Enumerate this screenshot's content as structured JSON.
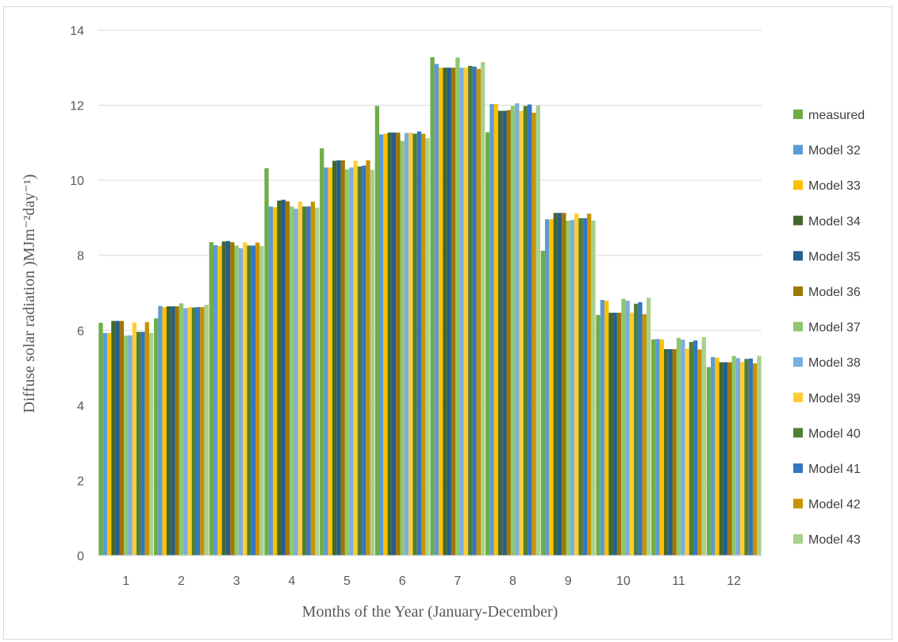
{
  "chart_data": {
    "type": "bar",
    "xlabel": "Months of the Year (January-December)",
    "ylabel": "Diffuse solar radiation )MJm⁻²day⁻¹)",
    "ylim": [
      0,
      14
    ],
    "yticks": [
      0,
      2,
      4,
      6,
      8,
      10,
      12,
      14
    ],
    "grid": true,
    "legend_position": "right",
    "categories": [
      "1",
      "2",
      "3",
      "4",
      "5",
      "6",
      "7",
      "8",
      "9",
      "10",
      "11",
      "12"
    ],
    "series": [
      {
        "name": "measured",
        "color": "#70ad47",
        "values": [
          6.2,
          6.32,
          8.35,
          10.32,
          10.85,
          11.98,
          13.28,
          11.28,
          8.12,
          6.41,
          5.76,
          5.02
        ]
      },
      {
        "name": "Model 32",
        "color": "#5b9bd5",
        "values": [
          5.93,
          6.65,
          8.27,
          9.3,
          10.34,
          11.22,
          13.1,
          12.03,
          8.96,
          6.81,
          5.77,
          5.29
        ]
      },
      {
        "name": "Model 33",
        "color": "#ffc000",
        "values": [
          5.93,
          6.62,
          8.25,
          9.28,
          10.34,
          11.24,
          13.0,
          12.03,
          8.96,
          6.79,
          5.76,
          5.27
        ]
      },
      {
        "name": "Model 34",
        "color": "#43682b",
        "values": [
          6.25,
          6.64,
          8.37,
          9.46,
          10.52,
          11.27,
          13.0,
          11.85,
          9.13,
          6.47,
          5.5,
          5.15
        ]
      },
      {
        "name": "Model 35",
        "color": "#255e91",
        "values": [
          6.25,
          6.64,
          8.38,
          9.48,
          10.53,
          11.27,
          13.0,
          11.85,
          9.13,
          6.47,
          5.5,
          5.15
        ]
      },
      {
        "name": "Model 36",
        "color": "#9e7800",
        "values": [
          6.25,
          6.64,
          8.35,
          9.44,
          10.53,
          11.27,
          13.0,
          11.87,
          9.13,
          6.47,
          5.5,
          5.15
        ]
      },
      {
        "name": "Model 37",
        "color": "#8fc76d",
        "values": [
          5.86,
          6.72,
          8.26,
          9.3,
          10.29,
          11.05,
          13.27,
          11.98,
          8.92,
          6.84,
          5.8,
          5.32
        ]
      },
      {
        "name": "Model 38",
        "color": "#7aaee0",
        "values": [
          5.87,
          6.59,
          8.19,
          9.24,
          10.34,
          11.26,
          13.0,
          12.05,
          8.94,
          6.79,
          5.75,
          5.26
        ]
      },
      {
        "name": "Model 39",
        "color": "#ffcd33",
        "values": [
          6.21,
          6.62,
          8.34,
          9.43,
          10.52,
          11.27,
          13.0,
          11.85,
          9.11,
          6.47,
          5.51,
          5.16
        ]
      },
      {
        "name": "Model 40",
        "color": "#507e32",
        "values": [
          5.96,
          6.61,
          8.26,
          9.3,
          10.37,
          11.24,
          13.05,
          11.98,
          8.99,
          6.71,
          5.69,
          5.24
        ]
      },
      {
        "name": "Model 41",
        "color": "#3476c2",
        "values": [
          5.96,
          6.62,
          8.26,
          9.3,
          10.39,
          11.3,
          13.03,
          12.02,
          8.99,
          6.75,
          5.73,
          5.25
        ]
      },
      {
        "name": "Model 42",
        "color": "#c99200",
        "values": [
          6.22,
          6.62,
          8.34,
          9.43,
          10.53,
          11.24,
          12.97,
          11.8,
          9.11,
          6.43,
          5.49,
          5.12
        ]
      },
      {
        "name": "Model 43",
        "color": "#a9d18e",
        "values": [
          5.93,
          6.68,
          8.25,
          9.27,
          10.28,
          11.12,
          13.15,
          12.0,
          8.93,
          6.87,
          5.82,
          5.32
        ]
      }
    ]
  }
}
